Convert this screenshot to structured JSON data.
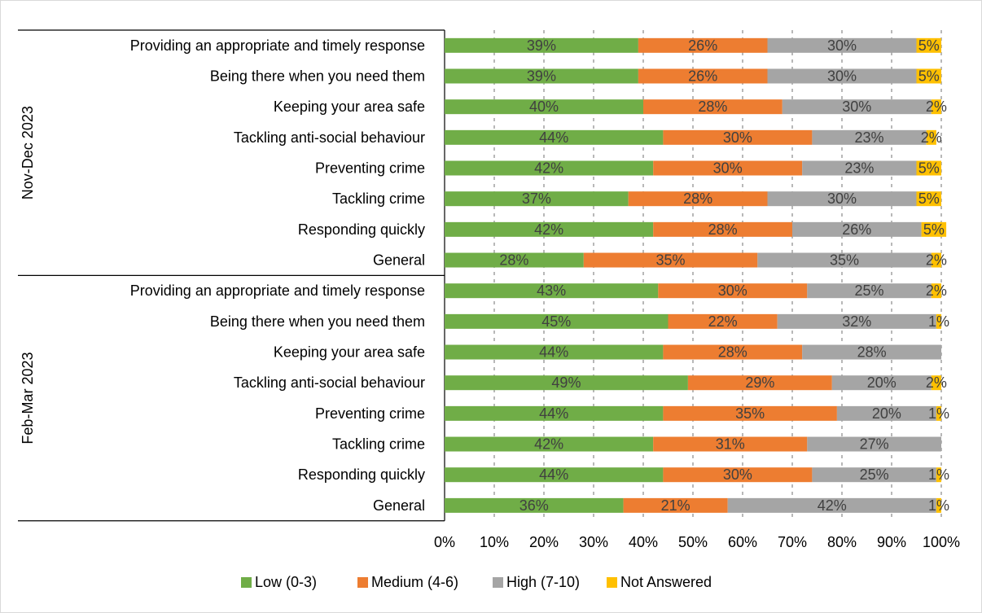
{
  "chart_data": {
    "type": "bar",
    "orientation": "horizontal",
    "stacked": true,
    "groups": [
      {
        "label": "Nov-Dec 2023",
        "categories": [
          "Providing an appropriate and timely response",
          "Being there when you need them",
          "Keeping your area safe",
          "Tackling anti-social behaviour",
          "Preventing crime",
          "Tackling crime",
          "Responding quickly",
          "General"
        ]
      },
      {
        "label": "Feb-Mar 2023",
        "categories": [
          "Providing an appropriate and timely response",
          "Being there when you need them",
          "Keeping your area safe",
          "Tackling anti-social behaviour",
          "Preventing crime",
          "Tackling crime",
          "Responding quickly",
          "General"
        ]
      }
    ],
    "series": [
      {
        "name": "Low (0-3)",
        "color": "#70AD47",
        "values": [
          39,
          39,
          40,
          44,
          42,
          37,
          42,
          28,
          43,
          45,
          44,
          49,
          44,
          42,
          44,
          36
        ],
        "labels": [
          "39%",
          "39%",
          "40%",
          "44%",
          "42%",
          "37%",
          "42%",
          "28%",
          "43%",
          "45%",
          "44%",
          "49%",
          "44%",
          "42%",
          "44%",
          "36%"
        ]
      },
      {
        "name": "Medium (4-6)",
        "color": "#ED7D31",
        "values": [
          26,
          26,
          28,
          30,
          30,
          28,
          28,
          35,
          30,
          22,
          28,
          29,
          35,
          31,
          30,
          21
        ],
        "labels": [
          "26%",
          "26%",
          "28%",
          "30%",
          "30%",
          "28%",
          "28%",
          "35%",
          "30%",
          "22%",
          "28%",
          "29%",
          "35%",
          "31%",
          "30%",
          "21%"
        ]
      },
      {
        "name": "High (7-10)",
        "color": "#A5A5A5",
        "values": [
          30,
          30,
          30,
          23,
          23,
          30,
          26,
          35,
          25,
          32,
          28,
          20,
          20,
          27,
          25,
          42
        ],
        "labels": [
          "30%",
          "30%",
          "30%",
          "23%",
          "23%",
          "30%",
          "26%",
          "35%",
          "25%",
          "32%",
          "28%",
          "20%",
          "20%",
          "27%",
          "25%",
          "42%"
        ]
      },
      {
        "name": "Not Answered",
        "color": "#FFC000",
        "values": [
          5,
          5,
          2,
          2,
          5,
          5,
          5,
          2,
          2,
          1,
          0,
          2,
          1,
          0,
          1,
          1
        ],
        "labels": [
          "5%",
          "5%",
          "2%",
          "2%",
          "5%",
          "5%",
          "5%",
          "2%",
          "2%",
          "1%",
          "",
          "2%",
          "1%",
          "",
          "1%",
          "1%"
        ]
      }
    ],
    "xlim": [
      0,
      100
    ],
    "x_ticks": [
      "0%",
      "10%",
      "20%",
      "30%",
      "40%",
      "50%",
      "60%",
      "70%",
      "80%",
      "90%",
      "100%"
    ],
    "gridlines": "vertical dashed",
    "legend": "bottom"
  }
}
